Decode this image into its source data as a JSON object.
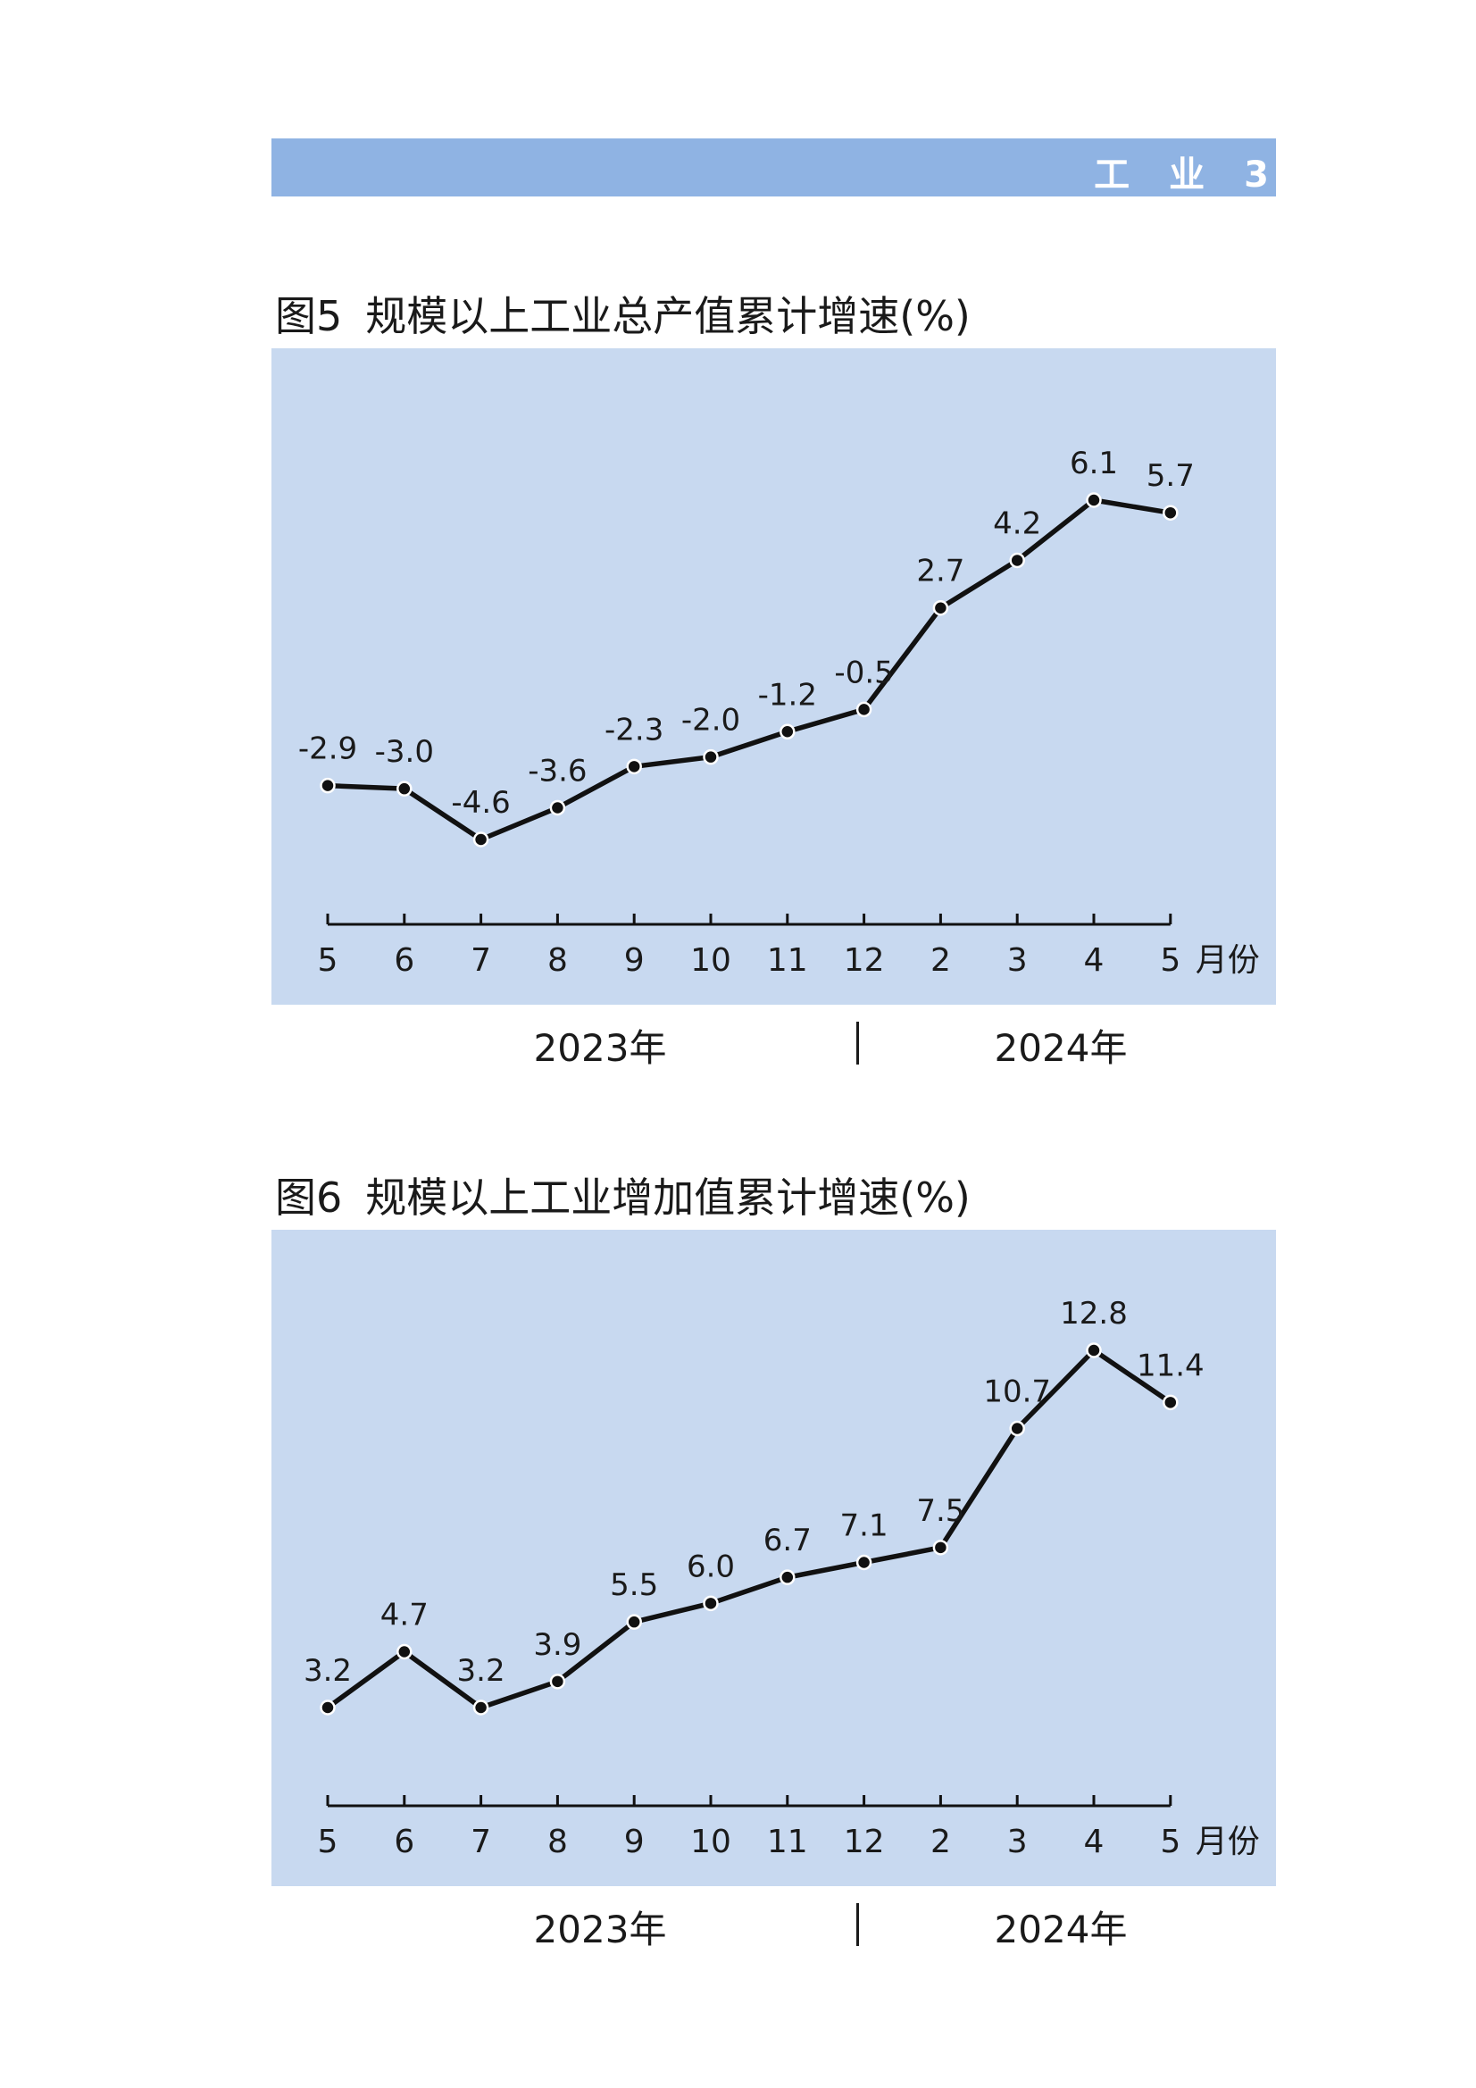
{
  "header": {
    "section": [
      "工",
      "业"
    ],
    "page_number": "3"
  },
  "charts": [
    {
      "title_number": "图5",
      "title_text": "规模以上工业总产值累计增速(%)",
      "unit_label": "月份",
      "years": [
        "2023年",
        "2024年"
      ],
      "chart_data": {
        "type": "line",
        "title": "图5  规模以上工业总产值累计增速(%)",
        "categories": [
          "5",
          "6",
          "7",
          "8",
          "9",
          "10",
          "11",
          "12",
          "2",
          "3",
          "4",
          "5"
        ],
        "values": [
          -2.9,
          -3.0,
          -4.6,
          -3.6,
          -2.3,
          -2.0,
          -1.2,
          -0.5,
          2.7,
          4.2,
          6.1,
          5.7
        ],
        "labels": [
          "-2.9",
          "-3.0",
          "-4.6",
          "-3.6",
          "-2.3",
          "-2.0",
          "-1.2",
          "-0.5",
          "2.7",
          "4.2",
          "6.1",
          "5.7"
        ],
        "xlabel": "月份",
        "ylabel": "",
        "ylim": [
          -11,
          6.5
        ],
        "grid": false,
        "colors": {
          "line": "#111111",
          "marker_fill": "#111111",
          "marker_stroke": "#ffffff",
          "background": "#c8d9f0"
        }
      }
    },
    {
      "title_number": "图6",
      "title_text": "规模以上工业增加值累计增速(%)",
      "unit_label": "月份",
      "years": [
        "2023年",
        "2024年"
      ],
      "chart_data": {
        "type": "line",
        "title": "图6  规模以上工业增加值累计增速(%)",
        "categories": [
          "5",
          "6",
          "7",
          "8",
          "9",
          "10",
          "11",
          "12",
          "2",
          "3",
          "4",
          "5"
        ],
        "values": [
          3.2,
          4.7,
          3.2,
          3.9,
          5.5,
          6.0,
          6.7,
          7.1,
          7.5,
          10.7,
          12.8,
          11.4
        ],
        "labels": [
          "3.2",
          "4.7",
          "3.2",
          "3.9",
          "5.5",
          "6.0",
          "6.7",
          "7.1",
          "7.5",
          "10.7",
          "12.8",
          "11.4"
        ],
        "xlabel": "月份",
        "ylabel": "",
        "ylim": [
          0,
          13.5
        ],
        "grid": false,
        "colors": {
          "line": "#111111",
          "marker_fill": "#111111",
          "marker_stroke": "#ffffff",
          "background": "#c8d9f0"
        }
      }
    }
  ]
}
